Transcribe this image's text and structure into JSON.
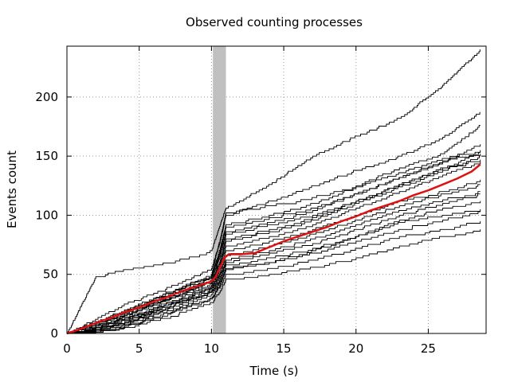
{
  "chart_data": {
    "type": "line",
    "title": "Observed counting processes",
    "xlabel": "Time (s)",
    "ylabel": "Events count",
    "xlim": [
      0,
      29
    ],
    "ylim": [
      0,
      243
    ],
    "xticks": [
      0,
      5,
      10,
      15,
      20,
      25
    ],
    "yticks": [
      0,
      50,
      100,
      150,
      200
    ],
    "grid": true,
    "highlight_band": {
      "x_start": 10.1,
      "x_end": 11.0,
      "color": "#c0c0c0"
    },
    "series_color": "#000000",
    "mean_color": "#dd1111",
    "series": [
      {
        "x": [
          0,
          2,
          4,
          6,
          8,
          10,
          10.6,
          11,
          14,
          17,
          20,
          23,
          26,
          28.6
        ],
        "y": [
          0,
          48,
          54,
          58,
          63,
          70,
          92,
          106,
          126,
          150,
          167,
          182,
          210,
          240
        ]
      },
      {
        "x": [
          0,
          2,
          4,
          6,
          8,
          10,
          10.6,
          11,
          14,
          17,
          20,
          23,
          26,
          28.6
        ],
        "y": [
          0,
          12,
          25,
          34,
          44,
          55,
          78,
          100,
          112,
          125,
          138,
          150,
          166,
          187
        ]
      },
      {
        "x": [
          0,
          2,
          4,
          6,
          8,
          10,
          10.6,
          11,
          14,
          17,
          20,
          23,
          26,
          28.6
        ],
        "y": [
          0,
          10,
          20,
          30,
          40,
          50,
          80,
          102,
          108,
          115,
          125,
          140,
          152,
          176
        ]
      },
      {
        "x": [
          0,
          2,
          4,
          6,
          8,
          10,
          10.6,
          11,
          14,
          17,
          20,
          23,
          26,
          28.6
        ],
        "y": [
          0,
          8,
          18,
          28,
          38,
          48,
          70,
          90,
          98,
          106,
          118,
          132,
          145,
          160
        ]
      },
      {
        "x": [
          0,
          2,
          4,
          6,
          8,
          10,
          10.6,
          11,
          14,
          17,
          20,
          23,
          26,
          28.6
        ],
        "y": [
          0,
          9,
          19,
          29,
          39,
          49,
          72,
          92,
          100,
          110,
          124,
          136,
          148,
          155
        ]
      },
      {
        "x": [
          0,
          2,
          4,
          6,
          8,
          10,
          10.6,
          11,
          14,
          17,
          20,
          23,
          26,
          28.6
        ],
        "y": [
          0,
          7,
          16,
          26,
          35,
          45,
          66,
          84,
          92,
          100,
          112,
          126,
          140,
          153
        ]
      },
      {
        "x": [
          0,
          2,
          4,
          6,
          8,
          10,
          10.6,
          11,
          14,
          17,
          20,
          23,
          26,
          28.6
        ],
        "y": [
          0,
          8,
          17,
          27,
          37,
          47,
          68,
          86,
          94,
          104,
          118,
          132,
          146,
          152
        ]
      },
      {
        "x": [
          0,
          2,
          4,
          6,
          8,
          10,
          10.6,
          11,
          14,
          17,
          20,
          23,
          26,
          28.6
        ],
        "y": [
          0,
          6,
          14,
          24,
          33,
          42,
          60,
          78,
          86,
          96,
          110,
          124,
          138,
          150
        ]
      },
      {
        "x": [
          0,
          2,
          4,
          6,
          8,
          10,
          10.6,
          11,
          14,
          17,
          20,
          23,
          26,
          28.6
        ],
        "y": [
          0,
          6,
          15,
          25,
          34,
          44,
          62,
          80,
          88,
          98,
          112,
          126,
          140,
          147
        ]
      },
      {
        "x": [
          0,
          2,
          4,
          6,
          8,
          10,
          10.6,
          11,
          14,
          17,
          20,
          23,
          26,
          28.6
        ],
        "y": [
          0,
          5,
          13,
          22,
          31,
          41,
          58,
          74,
          82,
          92,
          106,
          120,
          134,
          145
        ]
      },
      {
        "x": [
          0,
          2,
          4,
          6,
          8,
          10,
          10.6,
          11,
          14,
          17,
          20,
          23,
          26,
          28.6
        ],
        "y": [
          0,
          5,
          12,
          21,
          30,
          39,
          55,
          70,
          78,
          88,
          100,
          112,
          120,
          130
        ]
      },
      {
        "x": [
          0,
          2,
          4,
          6,
          8,
          10,
          10.6,
          11,
          14,
          17,
          20,
          23,
          26,
          28.6
        ],
        "y": [
          0,
          4,
          11,
          20,
          29,
          38,
          52,
          66,
          74,
          84,
          96,
          108,
          118,
          126
        ]
      },
      {
        "x": [
          0,
          2,
          4,
          6,
          8,
          10,
          10.6,
          11,
          14,
          17,
          20,
          23,
          26,
          28.6
        ],
        "y": [
          0,
          4,
          10,
          19,
          28,
          37,
          50,
          62,
          70,
          80,
          92,
          104,
          113,
          120
        ]
      },
      {
        "x": [
          0,
          2,
          4,
          6,
          8,
          10,
          10.6,
          11,
          14,
          17,
          20,
          23,
          26,
          28.6
        ],
        "y": [
          0,
          3,
          10,
          18,
          27,
          36,
          48,
          60,
          68,
          76,
          88,
          100,
          110,
          118
        ]
      },
      {
        "x": [
          0,
          2,
          4,
          6,
          8,
          10,
          10.6,
          11,
          14,
          17,
          20,
          23,
          26,
          28.6
        ],
        "y": [
          0,
          3,
          9,
          17,
          26,
          35,
          46,
          58,
          64,
          72,
          82,
          94,
          100,
          105
        ]
      },
      {
        "x": [
          0,
          2,
          4,
          6,
          8,
          10,
          10.6,
          11,
          14,
          17,
          20,
          23,
          26,
          28.6
        ],
        "y": [
          0,
          2,
          8,
          16,
          24,
          33,
          44,
          55,
          60,
          68,
          78,
          88,
          96,
          103
        ]
      },
      {
        "x": [
          0,
          2,
          4,
          6,
          8,
          10,
          10.6,
          11,
          14,
          17,
          20,
          23,
          26,
          28.6
        ],
        "y": [
          0,
          2,
          7,
          14,
          22,
          30,
          40,
          50,
          55,
          62,
          72,
          82,
          88,
          95
        ]
      },
      {
        "x": [
          0,
          2,
          4,
          6,
          8,
          10,
          10.6,
          11,
          14,
          17,
          20,
          23,
          26,
          28.6
        ],
        "y": [
          0,
          1,
          5,
          11,
          18,
          26,
          36,
          46,
          50,
          56,
          64,
          74,
          82,
          88
        ]
      },
      {
        "x": [
          0,
          2,
          4,
          6,
          8,
          10,
          10.6,
          11,
          14,
          17,
          20,
          23,
          26,
          28.6
        ],
        "y": [
          0,
          1,
          6,
          13,
          21,
          29,
          42,
          54,
          60,
          70,
          82,
          96,
          106,
          112
        ]
      }
    ],
    "mean_series": {
      "x": [
        0,
        1,
        2,
        3,
        4,
        5,
        6,
        7,
        8,
        9,
        10,
        10.3,
        10.6,
        10.9,
        11.2,
        12,
        13,
        14,
        15,
        16,
        17,
        18,
        19,
        20,
        21,
        22,
        23,
        24,
        25,
        26,
        27,
        28,
        28.6
      ],
      "y": [
        0,
        4,
        9,
        13,
        18,
        22,
        27,
        31,
        36,
        40,
        44,
        48,
        56,
        64,
        67,
        67,
        68,
        73,
        78,
        82,
        86,
        90,
        95,
        99,
        104,
        108,
        112,
        117,
        121,
        126,
        131,
        137,
        143
      ]
    }
  }
}
